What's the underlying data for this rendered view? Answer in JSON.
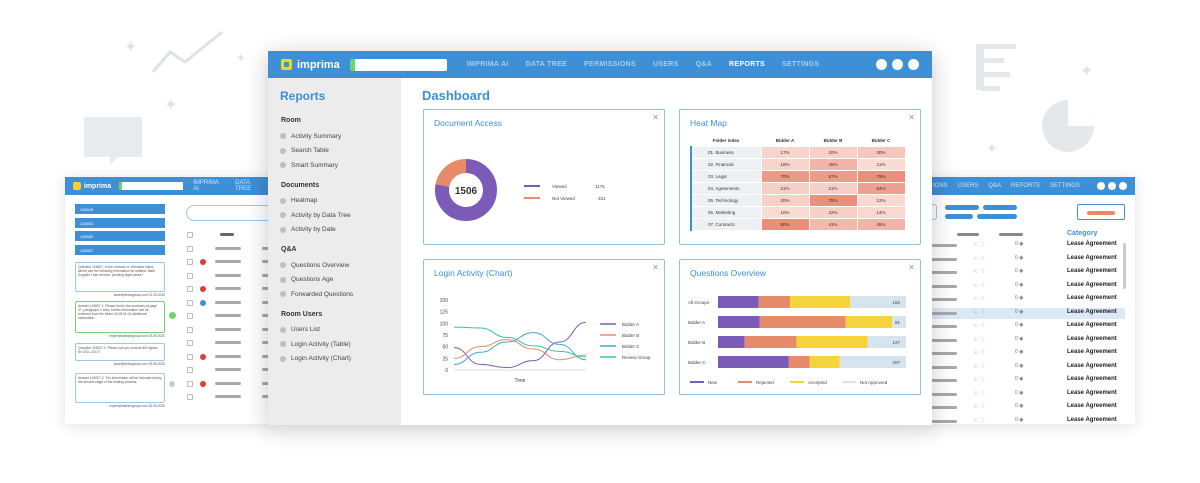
{
  "app": {
    "logo": "imprima",
    "nav": [
      "IMPRIMA AI",
      "DATA TREE",
      "PERMISSIONS",
      "USERS",
      "Q&A",
      "REPORTS",
      "SETTINGS"
    ],
    "active_nav": "REPORTS",
    "accent": "#3d8fd6"
  },
  "sidebar": {
    "title": "Reports",
    "groups": [
      {
        "label": "Room",
        "items": [
          "Activity Summary",
          "Search Table",
          "Smart Summary"
        ]
      },
      {
        "label": "Documents",
        "items": [
          "Heatmap",
          "Activity by Data Tree",
          "Activity by Date"
        ]
      },
      {
        "label": "Q&A",
        "items": [
          "Questions Overview",
          "Questions Age",
          "Forwarded Questions"
        ]
      },
      {
        "label": "Room Users",
        "items": [
          "Users List",
          "Login Activity (Table)",
          "Login Activity (Chart)"
        ]
      }
    ]
  },
  "dashboard": {
    "title": "Dashboard"
  },
  "cards": {
    "doc_access": {
      "title": "Document Access",
      "center": "1506",
      "legend": [
        {
          "label": "Viewed",
          "value": "1175",
          "color": "#7b5ab8"
        },
        {
          "label": "Not Viewed",
          "value": "331",
          "color": "#e78a6a"
        }
      ]
    },
    "heatmap": {
      "title": "Heat Map",
      "headers": [
        "Folder Index",
        "Bidder A",
        "Bidder B",
        "Bidder C"
      ],
      "rows": [
        {
          "label": "01. Business",
          "values": [
            "17%",
            "20%",
            "30%"
          ]
        },
        {
          "label": "02. Financial",
          "values": [
            "18%",
            "45%",
            "11%"
          ]
        },
        {
          "label": "03. Legal",
          "values": [
            "70%",
            "67%",
            "79%"
          ]
        },
        {
          "label": "04. Agreements",
          "values": [
            "21%",
            "21%",
            "64%"
          ]
        },
        {
          "label": "05. Technology",
          "values": [
            "20%",
            "78%",
            "12%"
          ]
        },
        {
          "label": "06. Marketing",
          "values": [
            "10%",
            "22%",
            "14%"
          ]
        },
        {
          "label": "07. Contracts",
          "values": [
            "80%",
            "41%",
            "45%"
          ]
        }
      ]
    },
    "login": {
      "title": "Login Activity (Chart)",
      "xlabel": "Time"
    },
    "questions": {
      "title": "Questions Overview",
      "rows": [
        {
          "label": "All Groups",
          "total": "162"
        },
        {
          "label": "Bidder A",
          "total": "81"
        },
        {
          "label": "Bidder B",
          "total": "127"
        },
        {
          "label": "Bidder C",
          "total": "207"
        }
      ],
      "legend": [
        "New",
        "Rejected",
        "Accepted",
        "Not Approved"
      ]
    }
  },
  "chart_data": [
    {
      "type": "pie",
      "title": "Document Access",
      "labels": [
        "Viewed",
        "Not Viewed"
      ],
      "values": [
        1175,
        331
      ]
    },
    {
      "type": "line",
      "title": "Login Activity (Chart)",
      "xlabel": "Time",
      "ylim": [
        0,
        150
      ],
      "yticks": [
        0,
        25,
        50,
        75,
        100,
        125,
        150
      ],
      "series": [
        {
          "name": "Bidder A",
          "color": "#7b5ab8",
          "values": [
            48,
            12,
            5,
            20,
            60,
            102
          ]
        },
        {
          "name": "Bidder B",
          "color": "#e78a6a",
          "values": [
            25,
            50,
            65,
            45,
            22,
            32
          ]
        },
        {
          "name": "Bidder C",
          "color": "#3da9d9",
          "values": [
            12,
            38,
            60,
            80,
            55,
            22
          ]
        },
        {
          "name": "Review Group",
          "color": "#3ec1a8",
          "values": [
            92,
            90,
            70,
            52,
            40,
            28
          ]
        }
      ]
    },
    {
      "type": "bar",
      "title": "Questions Overview",
      "categories": [
        "All Groups",
        "Bidder A",
        "Bidder B",
        "Bidder C"
      ],
      "series": [
        {
          "name": "New",
          "color": "#7b5ab8",
          "values": [
            35,
            18,
            18,
            78
          ]
        },
        {
          "name": "Rejected",
          "color": "#e78a6a",
          "values": [
            27,
            37,
            35,
            23
          ]
        },
        {
          "name": "Accepted",
          "color": "#f5d33a",
          "values": [
            52,
            20,
            48,
            33
          ]
        },
        {
          "name": "Not Approved",
          "color": "#d6e4ee",
          "values": [
            48,
            6,
            26,
            73
          ]
        }
      ],
      "totals": [
        162,
        81,
        127,
        207
      ]
    }
  ],
  "bg_left": {
    "tabs": [
      "115649",
      "115651",
      "115652",
      "115657"
    ],
    "notes": [
      {
        "text": "Question 115657: In the contract or otherwise listed, where can the following information be located. Mark Supplier Loan amount, pending legal cases?",
        "sig": "asset@brewgroup.com 22.05.2020"
      },
      {
        "text": "Answer 115657.1: Please find in the summary at page 37, paragraph 3. Also, further information can be retrieved from the folder 03.05.01.04 Additional information.",
        "sig": "expert@advisingroup.com 23.05.2020"
      },
      {
        "text": "Question 115007.1: Please can you provide the figures for 2011-2012?",
        "sig": "asset@brewgroup.com 25.05.2020"
      },
      {
        "text": "Answer 115007.2: The information will be included during the second stage of the bidding process.",
        "sig": "expert@advisingroup.com 25.05.2020"
      }
    ],
    "nav": [
      "IMPRIMA AI",
      "DATA TREE"
    ]
  },
  "bg_right": {
    "nav": [
      "IONS",
      "USERS",
      "Q&A",
      "REPORTS",
      "SETTINGS"
    ],
    "col_header": "Category",
    "rows": [
      "Lease Agreement",
      "Lease Agreement",
      "Lease Agreement",
      "Lease Agreement",
      "Lease Agreement",
      "Lease Agreement",
      "Lease Agreement",
      "Lease Agreement",
      "Lease Agreement",
      "Lease Agreement",
      "Lease Agreement",
      "Lease Agreement",
      "Lease Agreement",
      "Lease Agreement"
    ]
  }
}
